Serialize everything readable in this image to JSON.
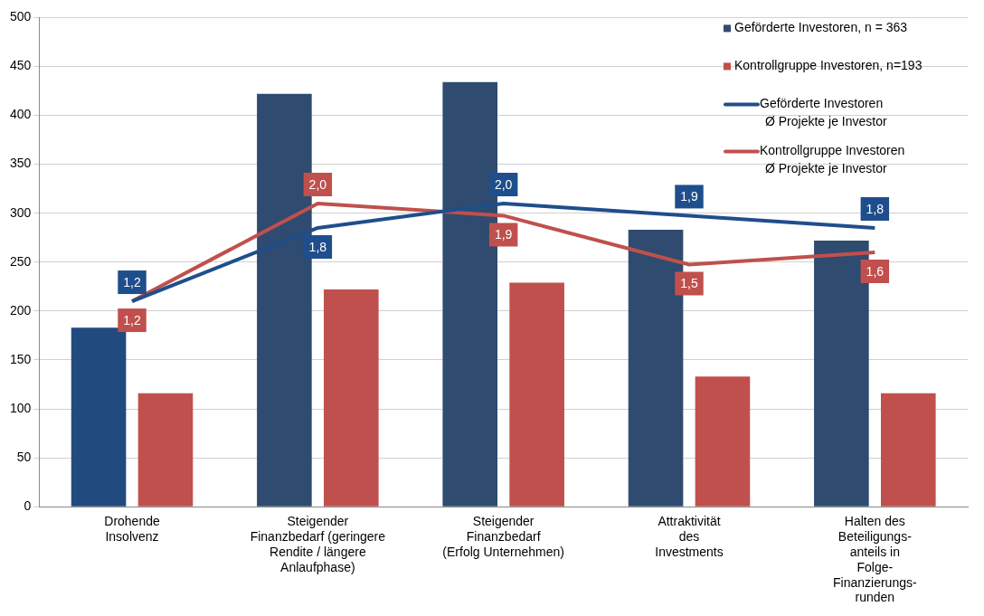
{
  "chart_data": {
    "type": "bar",
    "categories": [
      "Drohende\nInsolvenz",
      "Steigender\nFinanzbedarf (geringere\nRendite / längere\nAnlaufphase)",
      "Steigender\nFinanzbedarf\n(Erfolg Unternehmen)",
      "Attraktivität\ndes\nInvestments",
      "Halten des\nBeteiligungs-\nanteils in\nFolge-\nFinanzierungs-\nrunden"
    ],
    "series": [
      {
        "name": "Geförderte Investoren, n = 363",
        "color": "#2f4b6f",
        "colors": [
          "#214a7e",
          "#2f4b6f",
          "#2f4b6f",
          "#2f4b6f",
          "#2f4b6f"
        ],
        "values": [
          183,
          422,
          434,
          283,
          272
        ]
      },
      {
        "name": "Kontrollgruppe Investoren, n=193",
        "color": "#c0504d",
        "values": [
          116,
          222,
          229,
          133,
          116
        ]
      },
      {
        "type": "line",
        "axis": "y2",
        "name": "Geförderte Investoren\nØ Projekte je Investor",
        "color": "#1f4e8c",
        "values": [
          1.2,
          1.8,
          2.0,
          1.9,
          1.8
        ],
        "value_labels": [
          "1,2",
          "1,8",
          "2,0",
          "1,9",
          "1,8"
        ]
      },
      {
        "type": "line",
        "axis": "y2",
        "name": "Kontrollgruppe Investoren\nØ Projekte je Investor",
        "color": "#c0504d",
        "values": [
          1.2,
          2.0,
          1.9,
          1.5,
          1.6
        ],
        "value_labels": [
          "1,2",
          "2,0",
          "1,9",
          "1,5",
          "1,6"
        ]
      }
    ],
    "ylim": [
      0,
      500
    ],
    "yticks": [
      0,
      50,
      100,
      150,
      200,
      250,
      300,
      350,
      400,
      450,
      500
    ],
    "y2lim": [
      -0.48,
      3.52
    ],
    "grid": "y",
    "legend": "top right",
    "marker": "none",
    "line_style": "solid"
  }
}
